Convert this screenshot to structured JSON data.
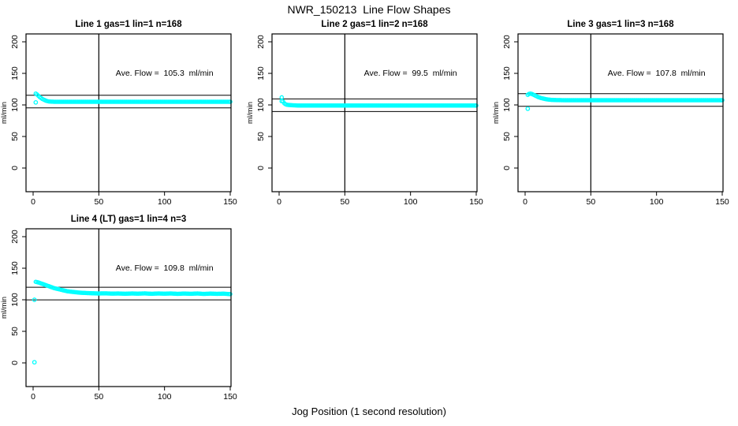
{
  "figure": {
    "title": "NWR_150213  Line Flow Shapes",
    "xlabel": "Jog Position (1 second resolution)",
    "background": "#ffffff",
    "line_color": "#000000",
    "marker_color": "#00FFFF"
  },
  "chart_data": [
    {
      "type": "scatter",
      "title": "Line 1 gas=1 lin=1 n=168",
      "annotation": "Ave. Flow =  105.3  ml/min",
      "ave_flow_ml_min": 105.3,
      "ylabel": "ml/min",
      "xticks": [
        0,
        50,
        100,
        150
      ],
      "yticks": [
        0,
        50,
        100,
        150,
        200
      ],
      "xlim": [
        -6,
        156
      ],
      "ylim": [
        -37,
        212
      ],
      "vline_x": 50,
      "hlines": [
        115.3,
        95.3
      ],
      "anchors": [
        [
          2,
          118
        ],
        [
          3,
          116.5
        ],
        [
          4,
          114.5
        ],
        [
          5,
          112.5
        ],
        [
          6,
          111
        ],
        [
          7,
          109.5
        ],
        [
          8,
          108.5
        ],
        [
          9,
          107.5
        ],
        [
          10,
          106.5
        ],
        [
          11,
          106
        ],
        [
          12,
          105.5
        ],
        [
          14,
          105.2
        ],
        [
          16,
          105
        ],
        [
          20,
          105
        ],
        [
          30,
          105
        ],
        [
          50,
          105
        ],
        [
          75,
          105
        ],
        [
          100,
          105
        ],
        [
          125,
          105
        ],
        [
          150,
          105
        ]
      ],
      "outliers": [
        [
          2,
          104
        ]
      ]
    },
    {
      "type": "scatter",
      "title": "Line 2 gas=1 lin=2 n=168",
      "annotation": "Ave. Flow =  99.5  ml/min",
      "ave_flow_ml_min": 99.5,
      "ylabel": "ml/min",
      "xticks": [
        0,
        50,
        100,
        150
      ],
      "yticks": [
        0,
        50,
        100,
        150,
        200
      ],
      "xlim": [
        -6,
        156
      ],
      "ylim": [
        -37,
        212
      ],
      "vline_x": 50,
      "hlines": [
        109.5,
        89.5
      ],
      "anchors": [
        [
          2,
          112
        ],
        [
          3,
          105.5
        ],
        [
          4,
          102.5
        ],
        [
          5,
          101
        ],
        [
          6,
          100.3
        ],
        [
          7,
          100
        ],
        [
          8,
          99.8
        ],
        [
          10,
          99.5
        ],
        [
          13,
          99.2
        ],
        [
          16,
          99
        ],
        [
          20,
          99
        ],
        [
          30,
          99
        ],
        [
          50,
          99
        ],
        [
          75,
          99
        ],
        [
          100,
          99
        ],
        [
          125,
          99
        ],
        [
          150,
          99
        ]
      ],
      "outliers": [
        [
          2,
          106
        ]
      ]
    },
    {
      "type": "scatter",
      "title": "Line 3 gas=1 lin=3 n=168",
      "annotation": "Ave. Flow =  107.8  ml/min",
      "ave_flow_ml_min": 107.8,
      "ylabel": "ml/min",
      "xticks": [
        0,
        50,
        100,
        150
      ],
      "yticks": [
        0,
        50,
        100,
        150,
        200
      ],
      "xlim": [
        -6,
        156
      ],
      "ylim": [
        -37,
        212
      ],
      "vline_x": 50,
      "hlines": [
        117.8,
        97.8
      ],
      "anchors": [
        [
          2,
          116
        ],
        [
          3,
          117.5
        ],
        [
          4,
          118
        ],
        [
          5,
          117.5
        ],
        [
          6,
          116.5
        ],
        [
          7,
          115.5
        ],
        [
          8,
          114.5
        ],
        [
          9,
          113.5
        ],
        [
          10,
          112.5
        ],
        [
          12,
          111
        ],
        [
          14,
          110
        ],
        [
          16,
          109
        ],
        [
          18,
          108.5
        ],
        [
          20,
          108
        ],
        [
          24,
          107.7
        ],
        [
          30,
          107.5
        ],
        [
          50,
          107.5
        ],
        [
          75,
          107.5
        ],
        [
          100,
          107.5
        ],
        [
          125,
          107.5
        ],
        [
          150,
          107.5
        ]
      ],
      "outliers": [
        [
          2,
          94
        ]
      ]
    },
    {
      "type": "scatter",
      "title": "Line 4 (LT) gas=1 lin=4 n=3",
      "annotation": "Ave. Flow =  109.8  ml/min",
      "ave_flow_ml_min": 109.8,
      "ylabel": "ml/min",
      "xticks": [
        0,
        50,
        100,
        150
      ],
      "yticks": [
        0,
        50,
        100,
        150,
        200
      ],
      "xlim": [
        -6,
        156
      ],
      "ylim": [
        -37,
        212
      ],
      "vline_x": 50,
      "hlines": [
        119.8,
        99.8
      ],
      "anchors": [
        [
          2,
          128.5
        ],
        [
          4,
          127.5
        ],
        [
          6,
          126
        ],
        [
          8,
          124.5
        ],
        [
          10,
          123
        ],
        [
          12,
          121.5
        ],
        [
          14,
          120
        ],
        [
          16,
          118.5
        ],
        [
          18,
          117.5
        ],
        [
          20,
          116.5
        ],
        [
          22,
          115.5
        ],
        [
          24,
          114.5
        ],
        [
          26,
          113.5
        ],
        [
          28,
          113
        ],
        [
          30,
          112.5
        ],
        [
          33,
          111.8
        ],
        [
          36,
          111.2
        ],
        [
          40,
          110.8
        ],
        [
          45,
          110.3
        ],
        [
          50,
          110
        ],
        [
          55,
          110.2
        ],
        [
          60,
          109.8
        ],
        [
          65,
          110
        ],
        [
          70,
          109.6
        ],
        [
          75,
          110
        ],
        [
          80,
          109.7
        ],
        [
          85,
          110.1
        ],
        [
          90,
          109.5
        ],
        [
          95,
          110
        ],
        [
          100,
          109.7
        ],
        [
          105,
          110
        ],
        [
          110,
          109.4
        ],
        [
          115,
          109.9
        ],
        [
          120,
          109.5
        ],
        [
          125,
          110
        ],
        [
          130,
          109.3
        ],
        [
          135,
          109.8
        ],
        [
          140,
          109.4
        ],
        [
          145,
          109.7
        ],
        [
          150,
          109
        ]
      ],
      "outliers": [
        [
          1,
          1
        ],
        [
          1,
          100
        ]
      ]
    }
  ]
}
